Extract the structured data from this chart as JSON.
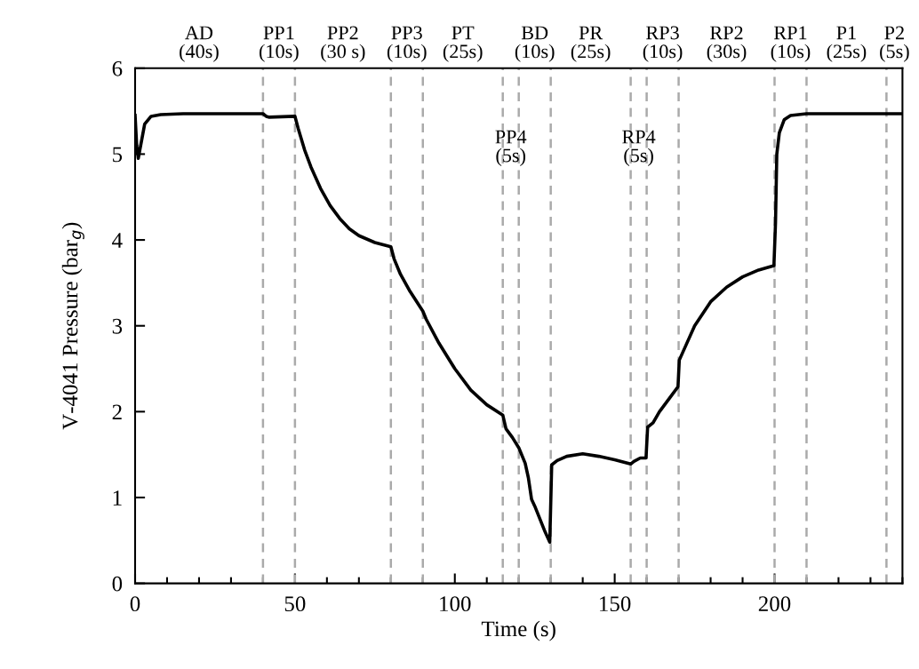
{
  "chart_data": {
    "type": "line",
    "xlabel": "Time (s)",
    "ylabel": "V-4041 Pressure (bar$_{g}$)",
    "xlim": [
      0,
      240
    ],
    "ylim": [
      0,
      6
    ],
    "xticks": [
      0,
      50,
      100,
      150,
      200
    ],
    "yticks": [
      0,
      1,
      2,
      3,
      4,
      5,
      6
    ],
    "legend": false,
    "marker": "none",
    "line_style": "solid",
    "series": [
      {
        "color": "#000000",
        "x": [
          0,
          0.5,
          1,
          2,
          3,
          5,
          8,
          15,
          40,
          41,
          42,
          50,
          51,
          53,
          55,
          58,
          61,
          64,
          67,
          70,
          75,
          80,
          81,
          83,
          86,
          90,
          91,
          95,
          100,
          105,
          110,
          115,
          116,
          118,
          120,
          122,
          123,
          124,
          125,
          128,
          129.7,
          130.3,
          132,
          135,
          140,
          145,
          150,
          155,
          156,
          158,
          159.8,
          160.3,
          162,
          164,
          167,
          169.8,
          170.2,
          172,
          175,
          180,
          185,
          190,
          195,
          199.8,
          200.3,
          200.7,
          201.5,
          203,
          205,
          210,
          240
        ],
        "values": [
          5.45,
          5.1,
          4.95,
          5.15,
          5.35,
          5.44,
          5.46,
          5.47,
          5.47,
          5.44,
          5.43,
          5.44,
          5.3,
          5.05,
          4.85,
          4.6,
          4.4,
          4.25,
          4.13,
          4.05,
          3.97,
          3.92,
          3.78,
          3.6,
          3.4,
          3.17,
          3.08,
          2.8,
          2.5,
          2.25,
          2.08,
          1.96,
          1.8,
          1.7,
          1.58,
          1.4,
          1.23,
          0.98,
          0.9,
          0.62,
          0.48,
          1.38,
          1.43,
          1.48,
          1.51,
          1.48,
          1.44,
          1.39,
          1.42,
          1.46,
          1.46,
          1.82,
          1.87,
          2.0,
          2.15,
          2.29,
          2.6,
          2.75,
          3.0,
          3.28,
          3.45,
          3.57,
          3.65,
          3.7,
          4.2,
          5.0,
          5.25,
          5.4,
          5.45,
          5.47,
          5.47
        ]
      }
    ],
    "ref_lines": [
      {
        "axis": "x",
        "value": 40,
        "color": "#aaaaaa",
        "line_style": "dashed"
      },
      {
        "axis": "x",
        "value": 50,
        "color": "#aaaaaa",
        "line_style": "dashed"
      },
      {
        "axis": "x",
        "value": 80,
        "color": "#aaaaaa",
        "line_style": "dashed"
      },
      {
        "axis": "x",
        "value": 90,
        "color": "#aaaaaa",
        "line_style": "dashed"
      },
      {
        "axis": "x",
        "value": 115,
        "color": "#aaaaaa",
        "line_style": "dashed"
      },
      {
        "axis": "x",
        "value": 120,
        "color": "#aaaaaa",
        "line_style": "dashed"
      },
      {
        "axis": "x",
        "value": 130,
        "color": "#aaaaaa",
        "line_style": "dashed"
      },
      {
        "axis": "x",
        "value": 155,
        "color": "#aaaaaa",
        "line_style": "dashed"
      },
      {
        "axis": "x",
        "value": 160,
        "color": "#aaaaaa",
        "line_style": "dashed"
      },
      {
        "axis": "x",
        "value": 170,
        "color": "#aaaaaa",
        "line_style": "dashed"
      },
      {
        "axis": "x",
        "value": 200,
        "color": "#aaaaaa",
        "line_style": "dashed"
      },
      {
        "axis": "x",
        "value": 210,
        "color": "#aaaaaa",
        "line_style": "dashed"
      },
      {
        "axis": "x",
        "value": 235,
        "color": "#aaaaaa",
        "line_style": "dashed"
      }
    ],
    "annotations": [
      "AD\n(40s)",
      "PP1\n(10s)",
      "PP2\n(30 s)",
      "PP3\n(10s)",
      "PT\n(25s)",
      "PP4\n(5s)",
      "BD\n(10s)",
      "PR\n(25s)",
      "RP4\n(5s)",
      "RP3\n(10s)",
      "RP2\n(30s)",
      "RP1\n(10s)",
      "P1\n(25s)",
      "P2\n(5s)"
    ]
  }
}
